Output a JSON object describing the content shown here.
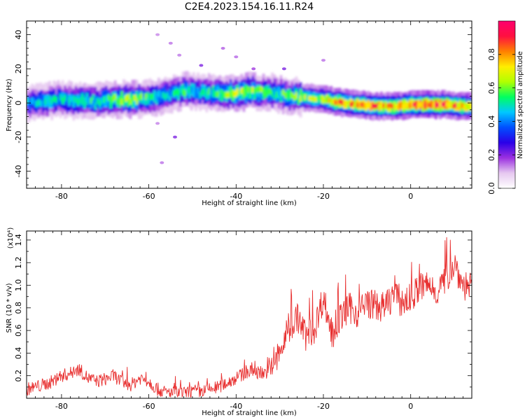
{
  "title": "C2E4.2023.154.16.11.R24",
  "chart_data": [
    {
      "type": "heatmap",
      "xlabel": "Height of straight line (km)",
      "ylabel": "Frequency (Hz)",
      "xlim": [
        -88,
        14
      ],
      "ylim": [
        -50,
        48
      ],
      "x_ticks": [
        -80,
        -60,
        -40,
        -20,
        0
      ],
      "y_ticks": [
        -40,
        -20,
        0,
        20,
        40
      ],
      "colorbar": {
        "label": "Normalized spectral amplitude",
        "range": [
          0,
          1
        ],
        "ticks": [
          "0.0",
          "0.2",
          "0.4",
          "0.6",
          "0.8"
        ],
        "colors": [
          "#ffffff",
          "#e6c8f0",
          "#9b30e0",
          "#2a00e8",
          "#0050ff",
          "#00c8ff",
          "#00ff60",
          "#b0ff00",
          "#ffee00",
          "#ff8000",
          "#ff1040",
          "#ff006e"
        ]
      },
      "ridge": {
        "x": [
          -88,
          -84,
          -80,
          -76,
          -72,
          -68,
          -64,
          -60,
          -56,
          -52,
          -48,
          -44,
          -40,
          -36,
          -32,
          -28,
          -24,
          -20,
          -16,
          -12,
          -8,
          -4,
          0,
          4,
          8,
          12,
          14
        ],
        "y": [
          0,
          1,
          2,
          1,
          1,
          2,
          2,
          3,
          5,
          7,
          6,
          5,
          6,
          7,
          6,
          4,
          3,
          2,
          0,
          -1,
          -2,
          -2,
          -1,
          -1,
          -1,
          -2,
          -2
        ],
        "amplitude": [
          0.45,
          0.5,
          0.5,
          0.55,
          0.55,
          0.6,
          0.65,
          0.55,
          0.5,
          0.55,
          0.5,
          0.6,
          0.7,
          0.65,
          0.55,
          0.6,
          0.65,
          0.75,
          0.85,
          0.85,
          0.85,
          0.85,
          0.95,
          0.95,
          0.9,
          0.85,
          0.8
        ]
      },
      "noise_spots": [
        [
          -58,
          40
        ],
        [
          -55,
          35
        ],
        [
          -43,
          32
        ],
        [
          -40,
          27
        ],
        [
          -36,
          20
        ],
        [
          -29,
          20
        ],
        [
          -20,
          25
        ],
        [
          -58,
          -12
        ],
        [
          -54,
          -20
        ],
        [
          -57,
          -35
        ],
        [
          -48,
          22
        ],
        [
          -53,
          28
        ]
      ]
    },
    {
      "type": "line",
      "xlabel": "Height of straight line (km)",
      "ylabel": "SNR (10 * v/v)",
      "y_multiplier": "(x10⁴)",
      "xlim": [
        -88,
        14
      ],
      "ylim": [
        0,
        1.48
      ],
      "x_ticks": [
        -80,
        -60,
        -40,
        -20,
        0
      ],
      "y_ticks": [
        0.2,
        0.4,
        0.6,
        0.8,
        1.0,
        1.2,
        1.4
      ],
      "series": [
        {
          "color": "#e83030",
          "x": [
            -88,
            -86,
            -84,
            -82,
            -80,
            -78,
            -76,
            -74,
            -72,
            -70,
            -68,
            -66,
            -64,
            -62,
            -60,
            -58,
            -56,
            -54,
            -52,
            -50,
            -48,
            -46,
            -44,
            -42,
            -40,
            -38,
            -36,
            -34,
            -32,
            -30,
            -28,
            -26,
            -24,
            -22,
            -20,
            -18,
            -16,
            -14,
            -12,
            -10,
            -8,
            -6,
            -4,
            -2,
            0,
            2,
            4,
            6,
            8,
            10,
            12,
            14
          ],
          "y": [
            0.08,
            0.1,
            0.12,
            0.15,
            0.2,
            0.22,
            0.26,
            0.18,
            0.15,
            0.17,
            0.2,
            0.14,
            0.12,
            0.18,
            0.15,
            0.08,
            0.05,
            0.05,
            0.04,
            0.06,
            0.06,
            0.08,
            0.1,
            0.14,
            0.18,
            0.22,
            0.24,
            0.22,
            0.25,
            0.4,
            0.6,
            0.72,
            0.55,
            0.62,
            0.9,
            0.55,
            0.72,
            0.8,
            0.75,
            0.85,
            0.82,
            0.8,
            0.92,
            0.85,
            0.88,
            0.98,
            1.0,
            0.95,
            1.05,
            1.2,
            1.0,
            1.0
          ]
        }
      ]
    }
  ]
}
